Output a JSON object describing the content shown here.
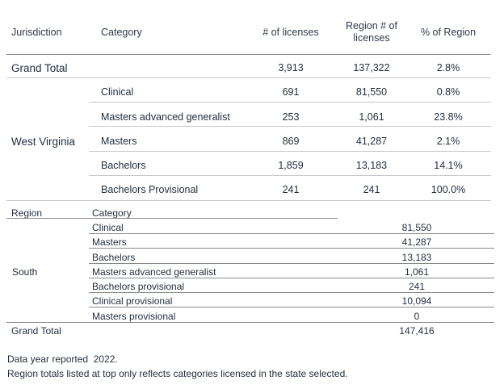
{
  "table1": {
    "headers": {
      "jurisdiction": "Jurisdiction",
      "category": "Category",
      "licenses": "# of licenses",
      "region_licenses_line1": "Region # of",
      "region_licenses_line2": "licenses",
      "pct_region": "% of Region"
    },
    "grand_total": {
      "label": "Grand Total",
      "licenses": "3,913",
      "region": "137,322",
      "pct": "2.8%"
    },
    "state": "West Virginia",
    "rows": [
      {
        "category": "Clinical",
        "licenses": "691",
        "region": "81,550",
        "pct": "0.8%"
      },
      {
        "category": "Masters advanced generalist",
        "licenses": "253",
        "region": "1,061",
        "pct": "23.8%"
      },
      {
        "category": "Masters",
        "licenses": "869",
        "region": "41,287",
        "pct": "2.1%"
      },
      {
        "category": "Bachelors",
        "licenses": "1,859",
        "region": "13,183",
        "pct": "14.1%"
      },
      {
        "category": "Bachelors Provisional",
        "licenses": "241",
        "region": "241",
        "pct": "100.0%"
      }
    ]
  },
  "table2": {
    "headers": {
      "region": "Region",
      "category": "Category"
    },
    "region": "South",
    "rows": [
      {
        "category": "Clinical",
        "value": "81,550"
      },
      {
        "category": "Masters",
        "value": "41,287"
      },
      {
        "category": "Bachelors",
        "value": "13,183"
      },
      {
        "category": "Masters advanced generalist",
        "value": "1,061"
      },
      {
        "category": "Bachelors provisional",
        "value": "241"
      },
      {
        "category": "Clinical provisional",
        "value": "10,094"
      },
      {
        "category": "Masters provisional",
        "value": "0"
      }
    ],
    "grand_total": {
      "label": "Grand Total",
      "value": "147,416"
    }
  },
  "footer": {
    "data_year_label": "Data year reported",
    "data_year": "2022.",
    "note": "Region totals listed at top only reflects categories licensed in the state selected."
  }
}
